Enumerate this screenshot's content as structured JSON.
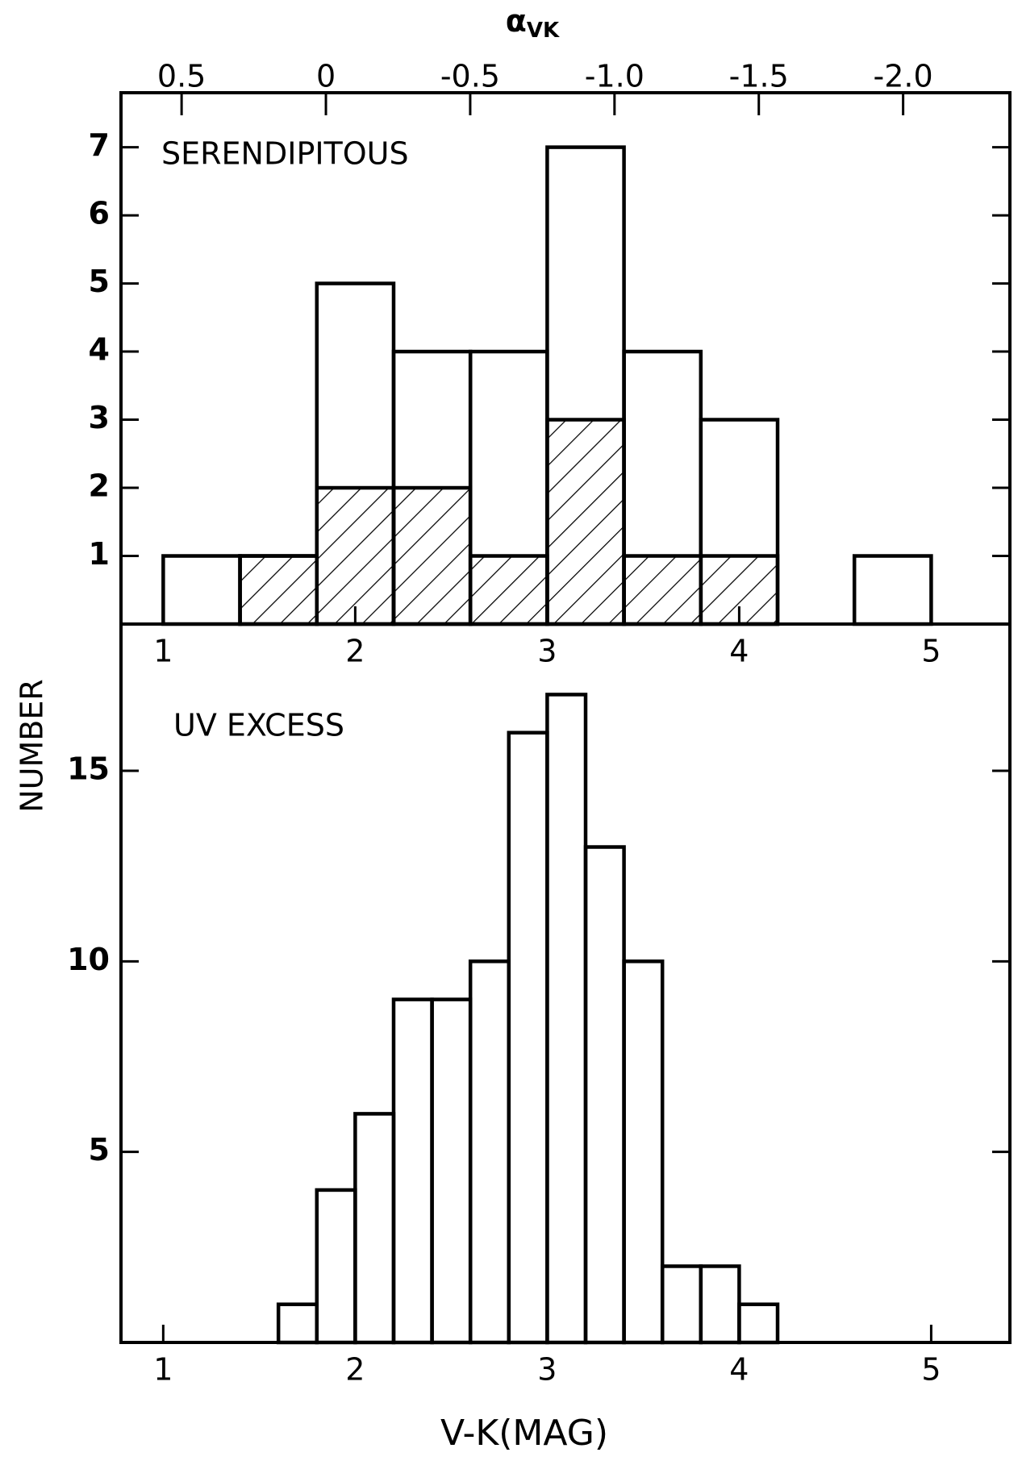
{
  "figure": {
    "ylabel": "NUMBER"
  },
  "chart_data": [
    {
      "type": "histogram",
      "annotation": "SERENDIPITOUS",
      "x2label": {
        "main": "α",
        "sub": "VK"
      },
      "bins": [
        1.0,
        1.4,
        1.8,
        2.2,
        2.6,
        3.0,
        3.4,
        3.8,
        4.2,
        4.6,
        5.0
      ],
      "series": [
        {
          "values": [
            1,
            1,
            5,
            4,
            4,
            7,
            4,
            3,
            0,
            1
          ],
          "hatch": false
        },
        {
          "values": [
            0,
            1,
            2,
            2,
            1,
            3,
            1,
            1,
            0,
            0
          ],
          "hatch": true
        }
      ],
      "xlim": [
        0.78,
        5.41
      ],
      "xticks": [
        1,
        2,
        3,
        4,
        5
      ],
      "x2lim": [
        0.71,
        -2.37
      ],
      "x2ticks": [
        0.5,
        0,
        -0.5,
        {
          "value": -1,
          "label": "-1.0"
        },
        -1.5,
        {
          "value": -2,
          "label": "-2.0"
        }
      ],
      "ylim": [
        0,
        7.8
      ],
      "yticks": [
        1,
        2,
        3,
        4,
        5,
        6,
        7
      ],
      "color": "#000000"
    },
    {
      "type": "histogram",
      "annotation": "UV EXCESS",
      "xlabel": "V-K(MAG)",
      "bins": [
        1.6,
        1.8,
        2.0,
        2.2,
        2.4,
        2.6,
        2.8,
        3.0,
        3.2,
        3.4,
        3.6,
        3.8,
        4.0,
        4.2
      ],
      "series": [
        {
          "values": [
            1,
            4,
            6,
            9,
            9,
            10,
            16,
            17,
            13,
            10,
            2,
            2,
            1
          ],
          "hatch": false
        }
      ],
      "xlim": [
        0.78,
        5.41
      ],
      "xticks": [
        1,
        2,
        3,
        4,
        5
      ],
      "ylim": [
        0,
        18.85
      ],
      "yticks": [
        5,
        10,
        15
      ],
      "color": "#000000"
    }
  ]
}
